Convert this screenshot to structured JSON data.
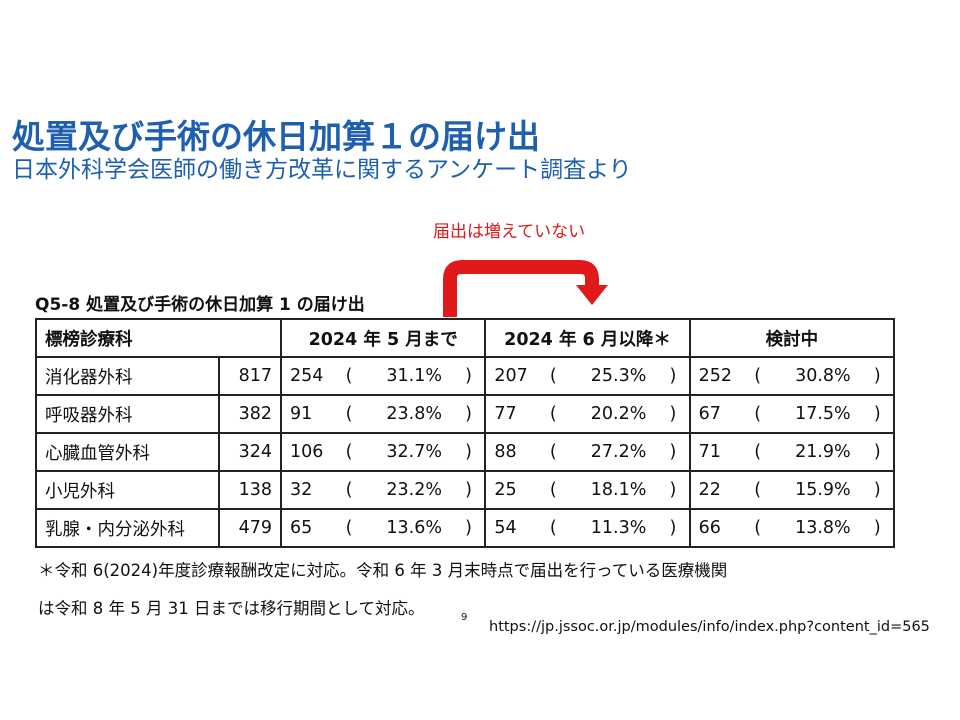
{
  "slide": {
    "title": "処置及び手術の休日加算１の届け出",
    "subtitle": "日本外科学会医師の働き方改革に関するアンケート調査より",
    "callout": "届出は増えていない",
    "page_number": "9",
    "source_url": "https://jp.jssoc.or.jp/modules/info/index.php?content_id=565",
    "colors": {
      "title": "#1f5fb0",
      "callout": "#e01a1a",
      "arrow": "#e01a1a"
    }
  },
  "table": {
    "caption": "Q5-8 処置及び手術の休日加算 1 の届け出",
    "headers": [
      "標榜診療科",
      "2024 年 5 月まで",
      "2024 年 6 月以降＊",
      "検討中"
    ],
    "rows": [
      {
        "dept": "消化器外科",
        "total": "817",
        "p1": [
          "254",
          "31.1%"
        ],
        "p2": [
          "207",
          "25.3%"
        ],
        "p3": [
          "252",
          "30.8%"
        ]
      },
      {
        "dept": "呼吸器外科",
        "total": "382",
        "p1": [
          "91",
          "23.8%"
        ],
        "p2": [
          "77",
          "20.2%"
        ],
        "p3": [
          "67",
          "17.5%"
        ]
      },
      {
        "dept": "心臓血管外科",
        "total": "324",
        "p1": [
          "106",
          "32.7%"
        ],
        "p2": [
          "88",
          "27.2%"
        ],
        "p3": [
          "71",
          "21.9%"
        ]
      },
      {
        "dept": "小児外科",
        "total": "138",
        "p1": [
          "32",
          "23.2%"
        ],
        "p2": [
          "25",
          "18.1%"
        ],
        "p3": [
          "22",
          "15.9%"
        ]
      },
      {
        "dept": "乳腺・内分泌外科",
        "total": "479",
        "p1": [
          "65",
          "13.6%"
        ],
        "p2": [
          "54",
          "11.3%"
        ],
        "p3": [
          "66",
          "13.8%"
        ]
      }
    ],
    "note_line1": "＊令和 6(2024)年度診療報酬改定に対応。令和 6 年 3 月末時点で届出を行っている医療機関",
    "note_line2": "は令和 8 年 5 月 31 日までは移行期間として対応。"
  }
}
